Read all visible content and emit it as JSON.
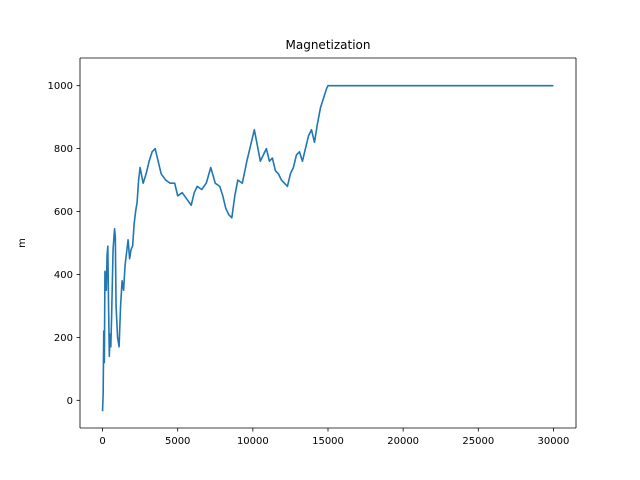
{
  "chart_data": {
    "type": "line",
    "title": "Magnetization",
    "xlabel": "",
    "ylabel": "m",
    "xlim": [
      -1500,
      31500
    ],
    "ylim": [
      -88,
      1088
    ],
    "xticks": [
      0,
      5000,
      10000,
      15000,
      20000,
      25000,
      30000
    ],
    "yticks": [
      0,
      200,
      400,
      600,
      800,
      1000
    ],
    "xtick_labels": [
      "0",
      "5000",
      "10000",
      "15000",
      "20000",
      "25000",
      "30000"
    ],
    "ytick_labels": [
      "0",
      "200",
      "400",
      "600",
      "800",
      "1000"
    ],
    "grid": false,
    "series": [
      {
        "color": "#1f77b4",
        "x": [
          0,
          40,
          80,
          120,
          160,
          200,
          250,
          300,
          350,
          400,
          450,
          500,
          550,
          600,
          700,
          800,
          850,
          900,
          950,
          1000,
          1100,
          1200,
          1300,
          1400,
          1500,
          1600,
          1700,
          1800,
          1900,
          2000,
          2100,
          2200,
          2300,
          2400,
          2500,
          2700,
          2900,
          3100,
          3300,
          3500,
          3700,
          3900,
          4200,
          4500,
          4800,
          5000,
          5300,
          5600,
          5900,
          6100,
          6300,
          6600,
          6900,
          7200,
          7500,
          7800,
          8000,
          8200,
          8400,
          8600,
          8800,
          9000,
          9300,
          9600,
          9900,
          10100,
          10300,
          10500,
          10700,
          10900,
          11100,
          11300,
          11500,
          11700,
          11900,
          12100,
          12300,
          12500,
          12700,
          12900,
          13100,
          13300,
          13500,
          13700,
          13900,
          14100,
          14300,
          14500,
          14700,
          14900,
          15000,
          30000
        ],
        "values": [
          -35,
          20,
          220,
          120,
          410,
          390,
          350,
          460,
          490,
          300,
          140,
          210,
          170,
          260,
          480,
          545,
          520,
          300,
          250,
          200,
          170,
          300,
          380,
          350,
          430,
          470,
          510,
          450,
          480,
          490,
          560,
          600,
          630,
          700,
          740,
          690,
          720,
          760,
          790,
          800,
          760,
          720,
          700,
          690,
          690,
          650,
          660,
          640,
          620,
          660,
          680,
          670,
          690,
          740,
          690,
          680,
          650,
          610,
          590,
          580,
          650,
          700,
          690,
          760,
          820,
          860,
          810,
          760,
          780,
          800,
          760,
          770,
          730,
          720,
          700,
          690,
          680,
          720,
          740,
          780,
          790,
          760,
          800,
          840,
          860,
          820,
          880,
          930,
          960,
          990,
          1000,
          1000
        ]
      }
    ]
  }
}
